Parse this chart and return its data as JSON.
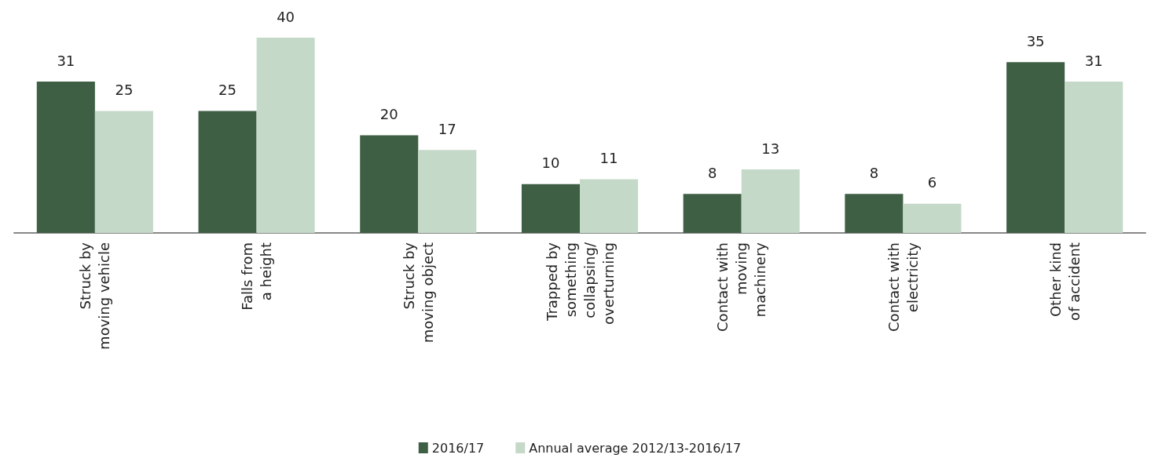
{
  "chart_data": {
    "type": "bar",
    "categories": [
      "Struck by\nmoving vehicle",
      "Falls from\na height",
      "Struck by\nmoving object",
      "Trapped by\nsomething\ncollapsing/\noverturning",
      "Contact with\nmoving\nmachinery",
      "Contact with\nelectricity",
      "Other kind\nof accident"
    ],
    "series": [
      {
        "name": "2016/17",
        "color": "#3f5f45",
        "values": [
          31,
          25,
          20,
          10,
          8,
          8,
          35
        ]
      },
      {
        "name": "Annual average 2012/13-2016/17",
        "color": "#c5d9c9",
        "values": [
          25,
          40,
          17,
          11,
          13,
          6,
          31
        ]
      }
    ],
    "data_labels": true,
    "legend": "bottom",
    "grid": false
  }
}
